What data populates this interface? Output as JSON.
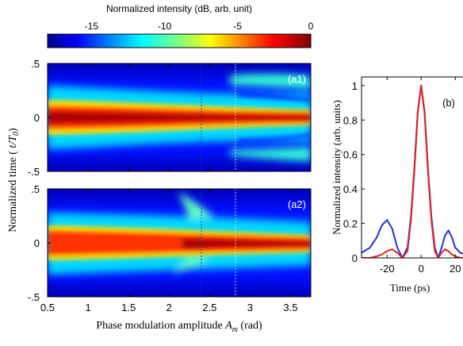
{
  "colorbar": {
    "title": "Normalized intensity (dB, arb. unit)",
    "ticks": [
      "-15",
      "-10",
      "-5",
      "0"
    ],
    "tick_values": [
      -15,
      -10,
      -5,
      0
    ],
    "range": [
      -18,
      0
    ]
  },
  "panels": {
    "a1": {
      "label": "(a1)"
    },
    "a2": {
      "label": "(a2)"
    },
    "b": {
      "label": "(b)"
    }
  },
  "heatmap_axes": {
    "ylabel_prefix": "Normalized time ( ",
    "ylabel_var": "t/T",
    "ylabel_sub": "0",
    "ylabel_suffix": ")",
    "xlabel_prefix": "Phase modulation amplitude ",
    "xlabel_var": "A",
    "xlabel_sub": "m",
    "xlabel_suffix": " (rad)",
    "xlim": [
      0.5,
      3.75
    ],
    "ylim": [
      -0.5,
      0.5
    ],
    "x_ticks": [
      "0.5",
      "1",
      "1.5",
      "2",
      "2.5",
      "3",
      "3.5"
    ],
    "x_tick_values": [
      0.5,
      1,
      1.5,
      2,
      2.5,
      3,
      3.5
    ],
    "y_ticks_a1": [
      ".5",
      "0",
      "-.5"
    ],
    "y_ticks_a2": [
      ".5",
      "0",
      "-.5"
    ],
    "y_tick_values": [
      0.5,
      0,
      -0.5
    ],
    "dashed_lines_x": [
      2.4,
      2.85
    ]
  },
  "line_axes": {
    "ylabel": "Normalized intensity (arb. units)",
    "xlabel": "Time (ps)",
    "x_ticks": [
      "-20",
      "0",
      "20"
    ],
    "x_tick_values": [
      -20,
      0,
      20
    ],
    "y_ticks": [
      "0",
      "0.2",
      "0.4",
      "0.6",
      "0.8",
      "1"
    ],
    "y_tick_values": [
      0,
      0.2,
      0.4,
      0.6,
      0.8,
      1
    ],
    "xlim": [
      -35,
      32
    ],
    "ylim": [
      0,
      1.05
    ]
  },
  "chart_data": [
    {
      "type": "heatmap",
      "panel": "a1",
      "z_unit": "dB",
      "x_range": [
        0.5,
        3.75
      ],
      "y_range": [
        -0.5,
        0.5
      ],
      "z_range": [
        -18,
        0
      ],
      "description_points": [
        {
          "x": 0.5,
          "y": 0,
          "z": -1
        },
        {
          "x": 2.0,
          "y": 0,
          "z": -0.5
        },
        {
          "x": 3.5,
          "y": 0,
          "z": 0
        },
        {
          "x": 3.5,
          "y": 0.12,
          "z": -7
        },
        {
          "x": 3.5,
          "y": -0.12,
          "z": -7
        }
      ]
    },
    {
      "type": "heatmap",
      "panel": "a2",
      "z_unit": "dB",
      "x_range": [
        0.5,
        3.75
      ],
      "y_range": [
        -0.5,
        0.5
      ],
      "z_range": [
        -18,
        0
      ],
      "description_points": [
        {
          "x": 0.5,
          "y": 0,
          "z": -1
        },
        {
          "x": 2.3,
          "y": 0,
          "z": -0.5
        },
        {
          "x": 3.5,
          "y": 0,
          "z": 0
        }
      ]
    },
    {
      "type": "line",
      "panel": "b",
      "x": [
        -35,
        -30,
        -26,
        -23,
        -20,
        -17,
        -14,
        -11,
        -8,
        -6,
        -4,
        -2,
        0,
        2,
        4,
        6,
        8,
        10,
        12,
        14,
        16,
        18,
        20,
        23,
        26,
        30,
        32
      ],
      "series": [
        {
          "color": "#2030e0",
          "values": [
            0.03,
            0.06,
            0.12,
            0.19,
            0.22,
            0.17,
            0.06,
            0.0,
            0.06,
            0.24,
            0.52,
            0.85,
            1.0,
            0.85,
            0.52,
            0.24,
            0.06,
            0.0,
            0.06,
            0.13,
            0.16,
            0.12,
            0.06,
            0.03,
            0.02,
            0.01,
            0.01
          ]
        },
        {
          "color": "#e02020",
          "values": [
            0.0,
            0.0,
            0.01,
            0.02,
            0.04,
            0.05,
            0.03,
            0.0,
            0.04,
            0.22,
            0.5,
            0.84,
            1.0,
            0.84,
            0.5,
            0.22,
            0.04,
            0.0,
            0.03,
            0.05,
            0.04,
            0.02,
            0.01,
            0.0,
            0.0,
            0.0,
            0.0
          ]
        }
      ]
    }
  ]
}
